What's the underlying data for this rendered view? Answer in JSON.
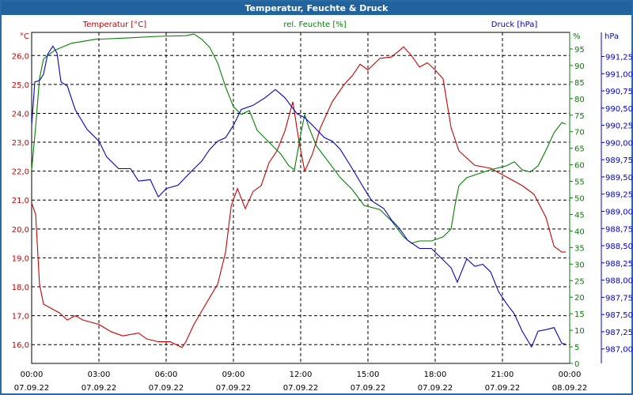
{
  "window": {
    "title": "Temperatur, Feuchte & Druck"
  },
  "chart_data": {
    "type": "line",
    "title": "Temperatur, Feuchte & Druck",
    "colors": {
      "temperature": "#cc0000",
      "humidity": "#008000",
      "pressure": "#0000cc",
      "titlebar": "#22639d"
    },
    "x_axis": {
      "unit": "hours since 07.09.22 00:00",
      "range": [
        0,
        24
      ],
      "ticks": [
        {
          "time": "00:00",
          "date": "07.09.22"
        },
        {
          "time": "03:00",
          "date": "07.09.22"
        },
        {
          "time": "06:00",
          "date": "07.09.22"
        },
        {
          "time": "09:00",
          "date": "07.09.22"
        },
        {
          "time": "12:00",
          "date": "07.09.22"
        },
        {
          "time": "15:00",
          "date": "07.09.22"
        },
        {
          "time": "18:00",
          "date": "07.09.22"
        },
        {
          "time": "21:00",
          "date": "07.09.22"
        },
        {
          "time": "00:00",
          "date": "08.09.22"
        }
      ]
    },
    "axes": {
      "temperature": {
        "title": "Temperatur [°C]",
        "unit": "°C",
        "range": [
          15.35,
          26.8
        ],
        "ticks": [
          "16,0",
          "17,0",
          "18,0",
          "19,0",
          "20,0",
          "21,0",
          "22,0",
          "23,0",
          "24,0",
          "25,0",
          "26,0"
        ],
        "tick_values": [
          16,
          17,
          18,
          19,
          20,
          21,
          22,
          23,
          24,
          25,
          26
        ]
      },
      "humidity": {
        "title": "rel. Feuchte [%]",
        "unit": "%",
        "range": [
          0,
          100
        ],
        "ticks": [
          "0",
          "5",
          "10",
          "15",
          "20",
          "25",
          "30",
          "35",
          "40",
          "45",
          "50",
          "55",
          "60",
          "65",
          "70",
          "75",
          "80",
          "85",
          "90",
          "95"
        ],
        "tick_values": [
          0,
          5,
          10,
          15,
          20,
          25,
          30,
          35,
          40,
          45,
          50,
          55,
          60,
          65,
          70,
          75,
          80,
          85,
          90,
          95
        ]
      },
      "pressure": {
        "title": "Druck [hPa]",
        "unit": "hPa",
        "range": [
          986.79,
          991.6
        ],
        "ticks": [
          "987,00",
          "987,25",
          "987,50",
          "987,75",
          "988,00",
          "988,25",
          "988,50",
          "988,75",
          "989,00",
          "989,25",
          "989,50",
          "989,75",
          "990,00",
          "990,25",
          "990,50",
          "990,75",
          "991,00",
          "991,25"
        ],
        "tick_values": [
          987,
          987.25,
          987.5,
          987.75,
          988,
          988.25,
          988.5,
          988.75,
          989,
          989.25,
          989.5,
          989.75,
          990,
          990.25,
          990.5,
          990.75,
          991,
          991.25
        ]
      }
    },
    "grid": true,
    "series": [
      {
        "name": "Temperatur [°C]",
        "axis": "temperature",
        "x": [
          0,
          0.18,
          0.35,
          0.53,
          0.88,
          1.24,
          1.59,
          1.94,
          2.29,
          3.0,
          3.53,
          4.06,
          4.77,
          5.12,
          5.65,
          6.18,
          6.71,
          6.88,
          7.24,
          7.77,
          8.3,
          8.65,
          8.9,
          9.18,
          9.53,
          9.88,
          10.24,
          10.59,
          10.94,
          11.3,
          11.65,
          11.93,
          12.18,
          12.53,
          12.88,
          13.41,
          13.94,
          14.3,
          14.65,
          15.0,
          15.53,
          16.06,
          16.59,
          16.94,
          17.3,
          17.65,
          18.0,
          18.35,
          18.71,
          19.06,
          19.77,
          20.47,
          21.18,
          21.88,
          22.41,
          22.94,
          23.3,
          23.65,
          23.82
        ],
        "y": [
          20.9,
          20.5,
          18.1,
          17.4,
          17.25,
          17.1,
          16.85,
          17.0,
          16.85,
          16.7,
          16.45,
          16.3,
          16.4,
          16.2,
          16.1,
          16.1,
          15.9,
          16.1,
          16.7,
          17.4,
          18.1,
          19.2,
          20.8,
          21.4,
          20.7,
          21.3,
          21.5,
          22.3,
          22.7,
          23.4,
          24.4,
          23.0,
          22.0,
          22.6,
          23.5,
          24.4,
          25.0,
          25.3,
          25.7,
          25.5,
          25.9,
          25.95,
          26.3,
          26.0,
          25.6,
          25.75,
          25.5,
          25.2,
          23.5,
          22.7,
          22.2,
          22.1,
          21.8,
          21.5,
          21.2,
          20.4,
          19.4,
          19.2,
          19.2
        ]
      },
      {
        "name": "rel. Feuchte [%]",
        "axis": "humidity",
        "x": [
          0,
          0.18,
          0.35,
          0.53,
          0.71,
          1.06,
          1.77,
          2.82,
          4.24,
          5.65,
          6.88,
          7.24,
          7.59,
          7.94,
          8.3,
          8.65,
          9.0,
          9.35,
          9.71,
          10.06,
          10.59,
          11.12,
          11.47,
          11.72,
          12.0,
          12.18,
          12.35,
          12.71,
          13.24,
          13.77,
          14.3,
          14.83,
          15.53,
          16.06,
          16.59,
          16.94,
          17.3,
          17.83,
          18.35,
          18.71,
          18.88,
          19.06,
          19.41,
          19.94,
          20.47,
          21.18,
          21.53,
          21.88,
          22.24,
          22.59,
          22.94,
          23.3,
          23.65,
          23.82
        ],
        "y": [
          58.5,
          71.6,
          86,
          92,
          93,
          94.7,
          96.7,
          97.9,
          98.3,
          98.8,
          99,
          99.5,
          97.9,
          95.5,
          90.7,
          83.5,
          77.6,
          75.2,
          76.4,
          70.4,
          66.8,
          63.2,
          59.7,
          58.5,
          69.2,
          75.2,
          71.6,
          65.6,
          60.9,
          56.1,
          52.5,
          47.7,
          46.5,
          43,
          38.2,
          36.3,
          37,
          37,
          38.2,
          40.6,
          47.7,
          53.7,
          56.1,
          57.3,
          58.5,
          59.7,
          60.9,
          58.5,
          57.8,
          59.7,
          64.4,
          69.7,
          72.8,
          72.3
        ]
      },
      {
        "name": "Druck [hPa]",
        "axis": "pressure",
        "x": [
          0,
          0.14,
          0.35,
          0.53,
          0.71,
          0.95,
          1.13,
          1.31,
          1.59,
          1.94,
          2.47,
          3.0,
          3.35,
          3.88,
          4.41,
          4.77,
          5.29,
          5.65,
          6.0,
          6.53,
          7.06,
          7.59,
          7.94,
          8.3,
          8.65,
          9.0,
          9.35,
          9.88,
          10.41,
          10.87,
          11.3,
          11.83,
          12.18,
          12.53,
          13.06,
          13.41,
          13.77,
          14.3,
          14.83,
          15.18,
          15.71,
          16.06,
          16.41,
          16.77,
          17.3,
          17.83,
          18.18,
          18.71,
          18.99,
          19.41,
          19.77,
          20.12,
          20.47,
          20.83,
          21.18,
          21.53,
          21.88,
          22.3,
          22.59,
          22.94,
          23.3,
          23.65,
          23.82
        ],
        "y": [
          990.25,
          990.88,
          990.9,
          990.99,
          991.28,
          991.4,
          991.3,
          990.88,
          990.82,
          990.48,
          990.19,
          990.02,
          989.79,
          989.62,
          989.62,
          989.44,
          989.46,
          989.21,
          989.33,
          989.38,
          989.56,
          989.73,
          989.9,
          990.02,
          990.07,
          990.25,
          990.48,
          990.54,
          990.65,
          990.77,
          990.65,
          990.42,
          990.36,
          990.25,
          990.07,
          990.02,
          989.9,
          989.62,
          989.33,
          989.15,
          989.04,
          988.87,
          988.75,
          988.58,
          988.46,
          988.46,
          988.35,
          988.18,
          987.97,
          988.31,
          988.2,
          988.23,
          988.12,
          987.83,
          987.66,
          987.51,
          987.26,
          987.03,
          987.26,
          987.28,
          987.31,
          987.08,
          987.07
        ]
      }
    ]
  }
}
